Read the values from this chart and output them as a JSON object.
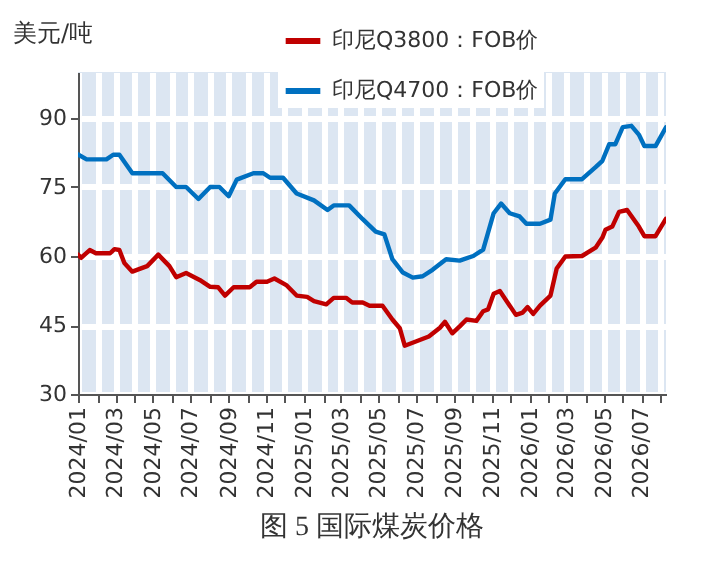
{
  "chart_data": {
    "type": "line",
    "title": "图 5 国际煤炭价格",
    "ylabel": "美元/吨",
    "xlim": [
      "2024-01-01",
      "2026-08-10"
    ],
    "ylim": [
      30,
      100
    ],
    "yticks": [
      30,
      45,
      60,
      75,
      90
    ],
    "xticks": [
      {
        "value": "2024-01",
        "label": "2024/01"
      },
      {
        "value": "2024-02",
        "label": null
      },
      {
        "value": "2024-03",
        "label": "2024/03"
      },
      {
        "value": "2024-04",
        "label": null
      },
      {
        "value": "2024-05",
        "label": "2024/05"
      },
      {
        "value": "2024-06",
        "label": null
      },
      {
        "value": "2024-07",
        "label": "2024/07"
      },
      {
        "value": "2024-08",
        "label": null
      },
      {
        "value": "2024-09",
        "label": "2024/09"
      },
      {
        "value": "2024-10",
        "label": null
      },
      {
        "value": "2024-11",
        "label": "2024/11"
      },
      {
        "value": "2024-12",
        "label": null
      },
      {
        "value": "2025-01",
        "label": "2025/01"
      },
      {
        "value": "2025-02",
        "label": null
      },
      {
        "value": "2025-03",
        "label": "2025/03"
      },
      {
        "value": "2025-04",
        "label": null
      },
      {
        "value": "2025-05",
        "label": "2025/05"
      },
      {
        "value": "2025-06",
        "label": null
      },
      {
        "value": "2025-07",
        "label": "2025/07"
      },
      {
        "value": "2025-08",
        "label": null
      },
      {
        "value": "2025-09",
        "label": "2025/09"
      },
      {
        "value": "2025-10",
        "label": null
      },
      {
        "value": "2025-11",
        "label": "2025/11"
      },
      {
        "value": "2025-12",
        "label": null
      },
      {
        "value": "2026-01",
        "label": "2026/01"
      },
      {
        "value": "2026-02",
        "label": null
      },
      {
        "value": "2026-03",
        "label": "2026/03"
      },
      {
        "value": "2026-04",
        "label": null
      },
      {
        "value": "2026-05",
        "label": "2026/05"
      },
      {
        "value": "2026-06",
        "label": null
      },
      {
        "value": "2026-07",
        "label": "2026/07"
      },
      {
        "value": "2026-08",
        "label": null
      }
    ],
    "grid": true,
    "legend": "top",
    "marker": "none",
    "line_style": "solid",
    "series": [
      {
        "name": "印尼Q3800：FOB价",
        "color": "#c00000",
        "x": [
          "2024-01-01",
          "2024-01-06",
          "2024-01-20",
          "2024-01-30",
          "2024-02-22",
          "2024-02-29",
          "2024-03-08",
          "2024-03-16",
          "2024-03-29",
          "2024-04-12",
          "2024-04-22",
          "2024-05-10",
          "2024-05-28",
          "2024-06-08",
          "2024-06-24",
          "2024-07-16",
          "2024-08-02",
          "2024-08-15",
          "2024-08-26",
          "2024-09-09",
          "2024-10-05",
          "2024-10-16",
          "2024-11-02",
          "2024-11-14",
          "2024-12-04",
          "2024-12-20",
          "2025-01-06",
          "2025-01-17",
          "2025-02-06",
          "2025-02-18",
          "2025-03-10",
          "2025-03-20",
          "2025-04-06",
          "2025-04-17",
          "2025-05-08",
          "2025-05-24",
          "2025-06-05",
          "2025-06-13",
          "2025-07-01",
          "2025-07-22",
          "2025-08-09",
          "2025-08-17",
          "2025-08-29",
          "2025-09-10",
          "2025-09-21",
          "2025-10-07",
          "2025-10-18",
          "2025-10-26",
          "2025-11-04",
          "2025-11-14",
          "2025-11-30",
          "2025-12-10",
          "2025-12-21",
          "2025-12-29",
          "2026-01-07",
          "2026-01-18",
          "2026-02-04",
          "2026-02-14",
          "2026-02-28",
          "2026-03-27",
          "2026-04-18",
          "2026-04-29",
          "2026-05-04",
          "2026-05-15",
          "2026-05-26",
          "2026-06-08",
          "2026-06-27",
          "2026-07-06",
          "2026-07-24",
          "2026-08-10"
        ],
        "values": [
          60.3,
          59.6,
          61.3,
          60.6,
          60.6,
          61.5,
          61.3,
          58.5,
          56.6,
          57.3,
          57.8,
          60.3,
          57.8,
          55.4,
          56.3,
          54.8,
          53.3,
          53.2,
          51.4,
          53.2,
          53.2,
          54.4,
          54.4,
          55.1,
          53.6,
          51.4,
          51.1,
          50.2,
          49.5,
          50.9,
          50.9,
          49.9,
          49.9,
          49.2,
          49.2,
          46.2,
          44.3,
          40.5,
          41.4,
          42.5,
          44.4,
          45.7,
          43.2,
          44.7,
          46.2,
          45.9,
          48,
          48.4,
          51.8,
          52.4,
          49.2,
          47.2,
          47.7,
          48.9,
          47.4,
          49.2,
          51.4,
          57.3,
          59.9,
          60,
          61.8,
          64,
          65.7,
          66.4,
          69.6,
          70,
          66.4,
          64.3,
          64.3,
          68.1
        ]
      },
      {
        "name": "印尼Q4700：FOB价",
        "color": "#0070c0",
        "x": [
          "2024-01-01",
          "2024-01-15",
          "2024-02-16",
          "2024-02-27",
          "2024-03-08",
          "2024-03-29",
          "2024-05-17",
          "2024-06-08",
          "2024-06-24",
          "2024-07-14",
          "2024-08-02",
          "2024-08-17",
          "2024-09-01",
          "2024-09-14",
          "2024-10-11",
          "2024-10-27",
          "2024-11-07",
          "2024-11-28",
          "2024-12-20",
          "2025-01-17",
          "2025-02-08",
          "2025-02-18",
          "2025-03-15",
          "2025-04-06",
          "2025-04-27",
          "2025-05-11",
          "2025-05-24",
          "2025-06-10",
          "2025-06-26",
          "2025-07-12",
          "2025-07-28",
          "2025-08-19",
          "2025-09-10",
          "2025-10-02",
          "2025-10-18",
          "2025-11-04",
          "2025-11-16",
          "2025-11-30",
          "2025-12-16",
          "2025-12-27",
          "2026-01-18",
          "2026-02-04",
          "2026-02-11",
          "2026-02-28",
          "2026-03-27",
          "2026-04-18",
          "2026-04-29",
          "2026-05-10",
          "2026-05-20",
          "2026-06-01",
          "2026-06-15",
          "2026-06-27",
          "2026-07-06",
          "2026-07-24",
          "2026-08-10"
        ],
        "values": [
          82.1,
          81,
          81,
          82,
          82,
          78,
          78,
          75,
          75,
          72.4,
          75,
          75,
          73,
          76.6,
          78,
          78,
          77,
          77,
          73.6,
          72.1,
          70,
          71,
          71,
          68,
          65.3,
          64.7,
          59.3,
          56.4,
          55.3,
          55.6,
          57,
          59.3,
          59,
          60,
          61.4,
          69.3,
          71.4,
          69.3,
          68.6,
          67,
          67,
          67.9,
          73.6,
          76.7,
          76.7,
          79.3,
          80.7,
          84.3,
          84.3,
          88,
          88.3,
          86.4,
          83.9,
          83.9,
          88
        ]
      }
    ]
  }
}
